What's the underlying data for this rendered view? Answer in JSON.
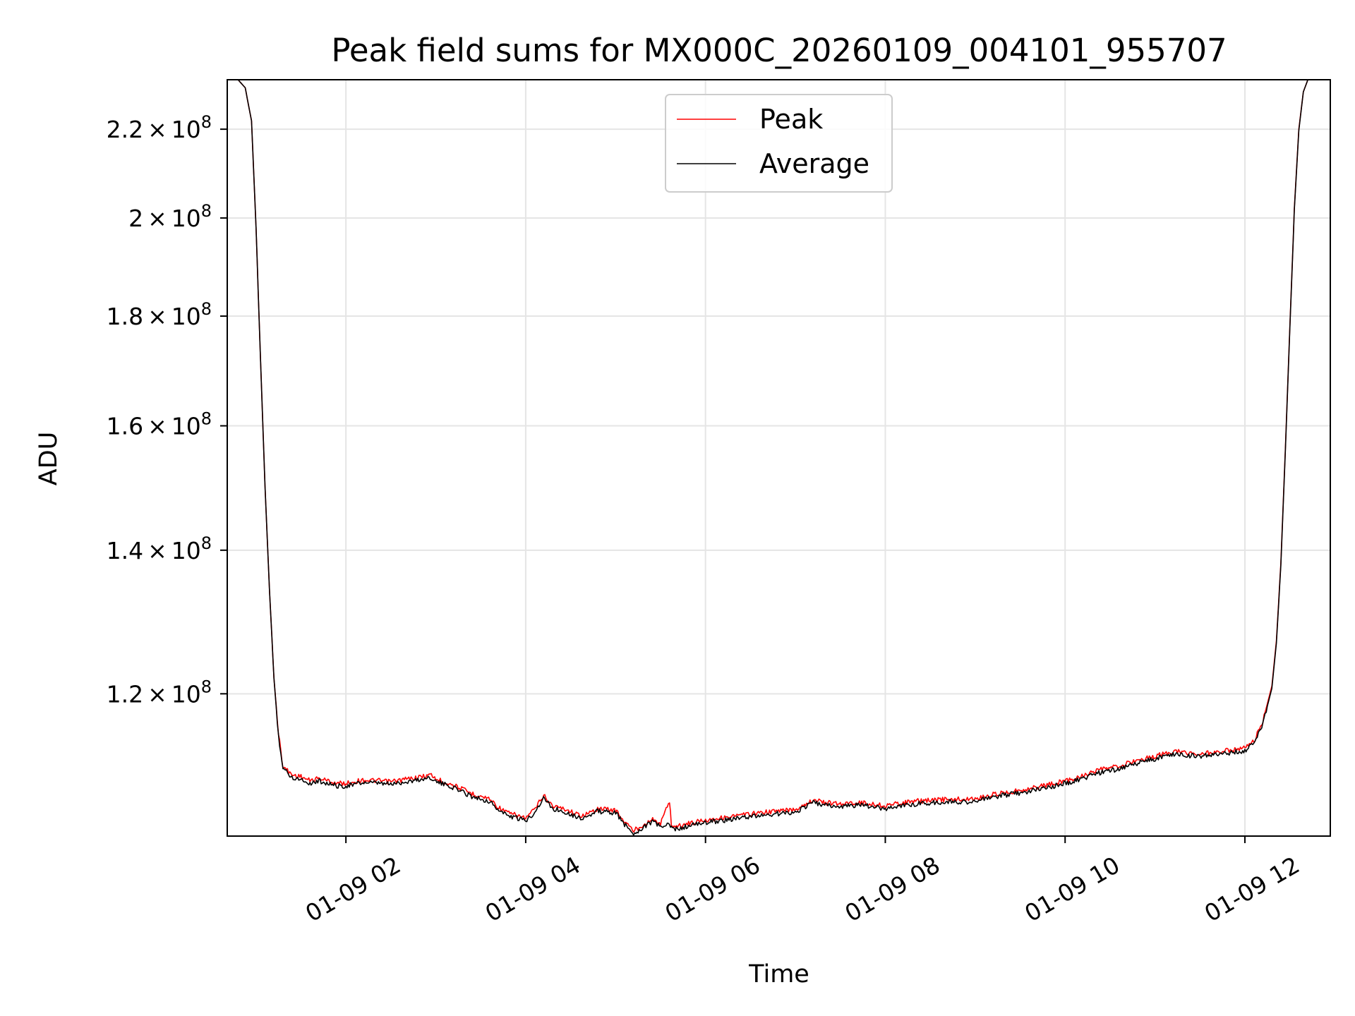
{
  "chart_data": {
    "type": "line",
    "title": "Peak field sums for MX000C_20260109_004101_955707",
    "xlabel": "Time",
    "ylabel": "ADU",
    "yscale": "log",
    "grid": true,
    "legend_position": "top-center",
    "x_unit": "hours since 01-09 00:00",
    "xlim": [
      0.68,
      12.95
    ],
    "ylim": [
      103000000,
      232000000
    ],
    "x_ticks": [
      {
        "value": 2,
        "label": "01-09 02"
      },
      {
        "value": 4,
        "label": "01-09 04"
      },
      {
        "value": 6,
        "label": "01-09 06"
      },
      {
        "value": 8,
        "label": "01-09 08"
      },
      {
        "value": 10,
        "label": "01-09 10"
      },
      {
        "value": 12,
        "label": "01-09 12"
      }
    ],
    "y_ticks": [
      {
        "value": 120000000,
        "mantissa": "1.2",
        "exponent": "8"
      },
      {
        "value": 140000000,
        "mantissa": "1.4",
        "exponent": "8"
      },
      {
        "value": 160000000,
        "mantissa": "1.6",
        "exponent": "8"
      },
      {
        "value": 180000000,
        "mantissa": "1.8",
        "exponent": "8"
      },
      {
        "value": 200000000,
        "mantissa": "2",
        "exponent": "8"
      },
      {
        "value": 220000000,
        "mantissa": "2.2",
        "exponent": "8"
      }
    ],
    "tick_times_sign": "×",
    "tick_base": "10",
    "series": [
      {
        "name": "Peak",
        "color": "#ff0000",
        "x": [
          0.68,
          0.8,
          0.88,
          0.95,
          1.0,
          1.05,
          1.1,
          1.15,
          1.2,
          1.25,
          1.3,
          1.4,
          1.5,
          1.6,
          1.7,
          1.8,
          1.9,
          2.0,
          2.2,
          2.5,
          2.8,
          2.95,
          3.0,
          3.2,
          3.4,
          3.6,
          3.7,
          3.8,
          4.0,
          4.1,
          4.2,
          4.3,
          4.45,
          4.6,
          4.7,
          4.8,
          5.0,
          5.1,
          5.2,
          5.3,
          5.4,
          5.5,
          5.6,
          5.62,
          5.64,
          5.7,
          5.8,
          6.0,
          6.3,
          6.6,
          7.0,
          7.2,
          7.3,
          7.5,
          7.7,
          8.0,
          8.3,
          8.6,
          9.0,
          9.2,
          9.5,
          9.8,
          10.0,
          10.2,
          10.4,
          10.6,
          10.8,
          11.0,
          11.2,
          11.5,
          11.8,
          12.0,
          12.1,
          12.2,
          12.3,
          12.35,
          12.4,
          12.45,
          12.5,
          12.55,
          12.6,
          12.65,
          12.7,
          12.8,
          12.95
        ],
        "values": [
          232000000,
          232000000,
          230000000,
          222000000,
          198000000,
          172000000,
          150000000,
          134000000,
          122000000,
          115000000,
          111000000,
          110000000,
          109800000,
          109300000,
          109600000,
          109300000,
          109000000,
          109000000,
          109400000,
          109200000,
          109700000,
          110000000,
          109500000,
          108800000,
          107800000,
          107200000,
          106200000,
          105600000,
          105000000,
          106000000,
          107600000,
          106400000,
          106000000,
          105300000,
          105500000,
          106100000,
          105900000,
          104600000,
          103600000,
          104200000,
          104900000,
          104400000,
          107000000,
          104300000,
          104100000,
          104100000,
          104400000,
          104800000,
          105200000,
          105600000,
          106000000,
          107100000,
          106800000,
          106600000,
          106800000,
          106400000,
          106900000,
          107100000,
          107200000,
          107700000,
          108200000,
          108800000,
          109300000,
          109900000,
          110600000,
          111000000,
          111700000,
          112200000,
          112800000,
          112500000,
          112900000,
          113200000,
          114000000,
          116500000,
          121000000,
          127000000,
          138000000,
          156000000,
          178000000,
          202000000,
          220000000,
          229000000,
          232000000,
          232000000,
          232000000
        ]
      },
      {
        "name": "Average",
        "color": "#000000",
        "x": [
          0.68,
          0.8,
          0.88,
          0.95,
          1.0,
          1.05,
          1.1,
          1.15,
          1.2,
          1.25,
          1.3,
          1.4,
          1.5,
          1.6,
          1.7,
          1.8,
          1.9,
          2.0,
          2.2,
          2.5,
          2.8,
          2.95,
          3.0,
          3.2,
          3.4,
          3.6,
          3.7,
          3.8,
          4.0,
          4.1,
          4.2,
          4.3,
          4.45,
          4.6,
          4.7,
          4.8,
          5.0,
          5.1,
          5.2,
          5.3,
          5.4,
          5.5,
          5.6,
          5.62,
          5.64,
          5.7,
          5.8,
          6.0,
          6.3,
          6.6,
          7.0,
          7.2,
          7.3,
          7.5,
          7.7,
          8.0,
          8.3,
          8.6,
          9.0,
          9.2,
          9.5,
          9.8,
          10.0,
          10.2,
          10.4,
          10.6,
          10.8,
          11.0,
          11.2,
          11.5,
          11.8,
          12.0,
          12.1,
          12.2,
          12.3,
          12.35,
          12.4,
          12.45,
          12.5,
          12.55,
          12.6,
          12.65,
          12.7,
          12.8,
          12.95
        ],
        "values": [
          232000000,
          232000000,
          230000000,
          222000000,
          198000000,
          172000000,
          150000000,
          134000000,
          122000000,
          114700000,
          110800000,
          109700000,
          109500000,
          109000000,
          109300000,
          109000000,
          108700000,
          108700000,
          109100000,
          108900000,
          109400000,
          109700000,
          109200000,
          108500000,
          107500000,
          106900000,
          105900000,
          105300000,
          104700000,
          105700000,
          107300000,
          106100000,
          105700000,
          105000000,
          105200000,
          105800000,
          105600000,
          104300000,
          103300000,
          103900000,
          104600000,
          104100000,
          104200000,
          104000000,
          103800000,
          103800000,
          104100000,
          104500000,
          104900000,
          105300000,
          105700000,
          106800000,
          106500000,
          106300000,
          106500000,
          106100000,
          106600000,
          106800000,
          106900000,
          107400000,
          107900000,
          108500000,
          109000000,
          109600000,
          110300000,
          110700000,
          111400000,
          111900000,
          112500000,
          112200000,
          112600000,
          112900000,
          113700000,
          116200000,
          120700000,
          126700000,
          137700000,
          155700000,
          177700000,
          201700000,
          219700000,
          229000000,
          232000000,
          232000000,
          232000000
        ]
      }
    ]
  }
}
